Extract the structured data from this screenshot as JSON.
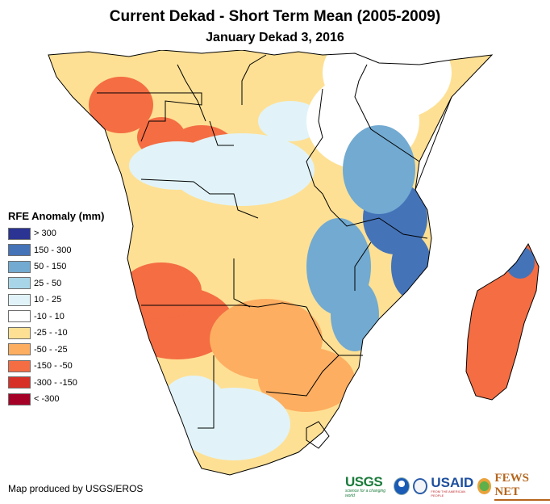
{
  "header": {
    "title": "Current Dekad - Short Term Mean (2005-2009)",
    "subtitle": "January Dekad 3, 2016"
  },
  "legend": {
    "title": "RFE Anomaly (mm)",
    "items": [
      {
        "label": "> 300",
        "color": "#2b3393"
      },
      {
        "label": "150 - 300",
        "color": "#4473b8"
      },
      {
        "label": "50 - 150",
        "color": "#72aad1"
      },
      {
        "label": "25 - 50",
        "color": "#a8d6e8"
      },
      {
        "label": "10 - 25",
        "color": "#e1f3f8"
      },
      {
        "label": "-10 - 10",
        "color": "#ffffff"
      },
      {
        "label": "-25 - -10",
        "color": "#fee094"
      },
      {
        "label": "-50 - -25",
        "color": "#fdae61"
      },
      {
        "label": "-150 - -50",
        "color": "#f46d43"
      },
      {
        "label": "-300 - -150",
        "color": "#d73027"
      },
      {
        "label": "< -300",
        "color": "#a50026"
      }
    ]
  },
  "footer": {
    "credit": "Map produced by USGS/EROS",
    "logos": {
      "usgs": "USGS",
      "usgs_tagline": "science for a changing world",
      "usaid": "USAID",
      "usaid_tagline": "FROM THE AMERICAN PEOPLE",
      "fews": "FEWS NET"
    }
  },
  "map": {
    "region": "Southern and Eastern Africa",
    "regions": [
      {
        "name": "central-africa-north",
        "anomaly_class": "-25 - -10"
      },
      {
        "name": "gabon-congo",
        "anomaly_class": "-150 - -50"
      },
      {
        "name": "drc-south",
        "anomaly_class": "10 - 25"
      },
      {
        "name": "tanzania-coast",
        "anomaly_class": "150 - 300"
      },
      {
        "name": "kenya-somalia",
        "anomaly_class": "-10 - 10"
      },
      {
        "name": "angola-namibia",
        "anomaly_class": "-150 - -50"
      },
      {
        "name": "botswana-zimbabwe",
        "anomaly_class": "-50 - -25"
      },
      {
        "name": "mozambique-malawi",
        "anomaly_class": "50 - 150"
      },
      {
        "name": "south-africa-west",
        "anomaly_class": "10 - 25"
      },
      {
        "name": "madagascar",
        "anomaly_class": "-150 - -50"
      },
      {
        "name": "madagascar-north",
        "anomaly_class": "150 - 300"
      }
    ]
  }
}
